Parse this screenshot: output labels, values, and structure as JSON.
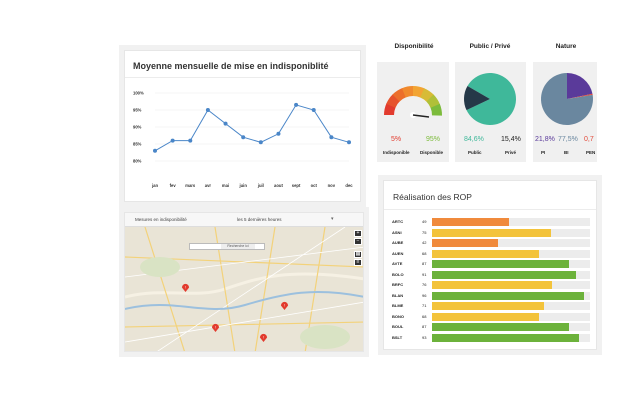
{
  "line_chart": {
    "title": "Moyenne mensuelle de mise en indisponiblité",
    "chart_data": {
      "type": "line",
      "categories": [
        "jan",
        "fev",
        "mars",
        "avr",
        "mai",
        "juin",
        "juil",
        "aout",
        "sept",
        "oct",
        "nov",
        "dec"
      ],
      "series": [
        {
          "values": [
            83,
            86,
            86,
            95,
            91,
            87,
            85.5,
            88,
            96.5,
            95,
            87,
            85.5
          ]
        }
      ],
      "ylim": [
        80,
        100
      ],
      "yticks": [
        "100%",
        "95%",
        "90%",
        "85%",
        "80%"
      ],
      "color": "#4a86c8",
      "grid": true
    }
  },
  "kpis": {
    "disponibilite": {
      "title": "Disponibilité",
      "chart_type": "gauge",
      "value_left": "5%",
      "value_right": "95%",
      "label_left": "Indisponible",
      "label_right": "Disponible",
      "color_left": "#e23b2e",
      "color_right": "#7cbb3b"
    },
    "public_prive": {
      "title": "Public / Privé",
      "chart_type": "pie",
      "value_left": "84,6%",
      "value_right": "15,4%",
      "label_left": "Public",
      "label_right": "Privé",
      "color_left": "#3fb89a",
      "color_right": "#253848"
    },
    "nature": {
      "title": "Nature",
      "chart_type": "pie",
      "value_left": "21,8%",
      "value_mid": "77,5%",
      "value_right": "0,7",
      "label_left": "PI",
      "label_mid": "BI",
      "label_right": "PEN",
      "color_left": "#5a3a9a",
      "color_mid": "#6a879f",
      "color_right": "#e24a3a"
    }
  },
  "map": {
    "toolbar_label": "Mesures en indisponibilité",
    "filter_value": "les 5 dernières heures",
    "search_button": "Recherche ici",
    "controls": [
      "+",
      "−",
      "▦",
      "≡"
    ]
  },
  "rop": {
    "title": "Réalisation des ROP",
    "chart_data": {
      "type": "bar",
      "categories": [
        "ARTC",
        "ASNI",
        "AUBE",
        "AUEN",
        "AVTE",
        "BOLO",
        "BRFC",
        "BLAN",
        "BLME",
        "BONO",
        "BOUL",
        "BSLT"
      ],
      "values": [
        49,
        75,
        42,
        68,
        87,
        91,
        76,
        96,
        71,
        68,
        87,
        93
      ],
      "labels": [
        "49",
        "75",
        "42",
        "68",
        "87",
        "91",
        "76",
        "96",
        "71",
        "68",
        "87",
        "93"
      ],
      "xlim": [
        0,
        100
      ],
      "colors": {
        "low": "#f08a3c",
        "mid": "#f3c33b",
        "high": "#6cb23b"
      }
    }
  }
}
